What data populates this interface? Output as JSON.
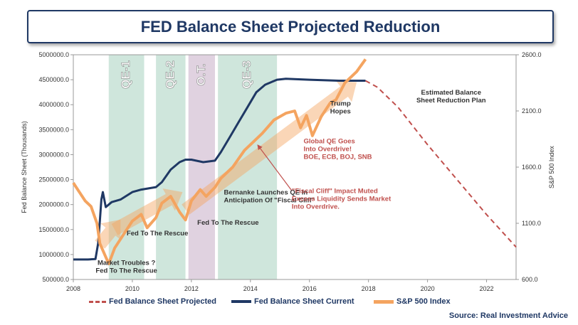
{
  "title": "FED Balance Sheet Projected Reduction",
  "source": "Source: Real Investment Advice",
  "chart_data": {
    "type": "line",
    "x_ticks": [
      "2008",
      "2010",
      "2012",
      "2014",
      "2016",
      "2018",
      "2020",
      "2022"
    ],
    "y_left_label": "Fed Balance Sheet (Thousands)",
    "y_left_ticks": [
      "5000000.0",
      "4500000.0",
      "4000000.0",
      "3500000.0",
      "3000000.0",
      "2500000.0",
      "2000000.0",
      "1500000.0",
      "1000000.0",
      "500000.0"
    ],
    "y_left_range": [
      500000,
      5000000
    ],
    "y_right_label": "S&P 500 Index",
    "y_right_ticks": [
      "2600.0",
      "2100.0",
      "1600.0",
      "1100.0",
      "600.0"
    ],
    "y_right_range": [
      600,
      2600
    ],
    "x_range": [
      2008,
      2023
    ],
    "bands": [
      {
        "label": "QE-1",
        "start": 2009.2,
        "end": 2010.4,
        "color": "#cfe6dc"
      },
      {
        "label": "QE-2",
        "start": 2010.8,
        "end": 2011.8,
        "color": "#cfe6dc"
      },
      {
        "label": "O.T.",
        "start": 2011.9,
        "end": 2012.8,
        "color": "#e0d2e0"
      },
      {
        "label": "QE-3",
        "start": 2012.9,
        "end": 2014.9,
        "color": "#cfe6dc"
      }
    ],
    "series": [
      {
        "name": "Fed Balance Sheet Current",
        "axis": "left",
        "color": "#1f3864",
        "points": [
          [
            2008.0,
            900000
          ],
          [
            2008.5,
            900000
          ],
          [
            2008.75,
            910000
          ],
          [
            2008.85,
            1250000
          ],
          [
            2008.95,
            2100000
          ],
          [
            2009.0,
            2250000
          ],
          [
            2009.1,
            1950000
          ],
          [
            2009.3,
            2050000
          ],
          [
            2009.6,
            2100000
          ],
          [
            2010.0,
            2250000
          ],
          [
            2010.3,
            2300000
          ],
          [
            2010.8,
            2350000
          ],
          [
            2011.0,
            2450000
          ],
          [
            2011.3,
            2700000
          ],
          [
            2011.6,
            2850000
          ],
          [
            2011.8,
            2900000
          ],
          [
            2012.0,
            2900000
          ],
          [
            2012.4,
            2850000
          ],
          [
            2012.8,
            2880000
          ],
          [
            2013.0,
            3050000
          ],
          [
            2013.3,
            3350000
          ],
          [
            2013.6,
            3650000
          ],
          [
            2013.9,
            3950000
          ],
          [
            2014.2,
            4250000
          ],
          [
            2014.5,
            4400000
          ],
          [
            2014.9,
            4500000
          ],
          [
            2015.2,
            4520000
          ],
          [
            2016.0,
            4500000
          ],
          [
            2017.0,
            4480000
          ],
          [
            2017.9,
            4480000
          ]
        ]
      },
      {
        "name": "S&P 500 Index",
        "axis": "right",
        "color": "#f4a460",
        "points": [
          [
            2008.0,
            1460
          ],
          [
            2008.2,
            1380
          ],
          [
            2008.4,
            1300
          ],
          [
            2008.6,
            1250
          ],
          [
            2008.8,
            1100
          ],
          [
            2008.9,
            920
          ],
          [
            2009.1,
            800
          ],
          [
            2009.2,
            740
          ],
          [
            2009.4,
            880
          ],
          [
            2009.7,
            1000
          ],
          [
            2010.0,
            1120
          ],
          [
            2010.3,
            1180
          ],
          [
            2010.5,
            1060
          ],
          [
            2010.8,
            1150
          ],
          [
            2011.0,
            1280
          ],
          [
            2011.3,
            1340
          ],
          [
            2011.6,
            1200
          ],
          [
            2011.8,
            1130
          ],
          [
            2012.0,
            1300
          ],
          [
            2012.3,
            1400
          ],
          [
            2012.5,
            1340
          ],
          [
            2012.8,
            1420
          ],
          [
            2013.0,
            1500
          ],
          [
            2013.4,
            1600
          ],
          [
            2013.8,
            1750
          ],
          [
            2014.0,
            1800
          ],
          [
            2014.4,
            1900
          ],
          [
            2014.8,
            2020
          ],
          [
            2015.2,
            2080
          ],
          [
            2015.5,
            2100
          ],
          [
            2015.7,
            1950
          ],
          [
            2015.9,
            2060
          ],
          [
            2016.1,
            1880
          ],
          [
            2016.4,
            2050
          ],
          [
            2016.7,
            2170
          ],
          [
            2016.9,
            2200
          ],
          [
            2017.2,
            2350
          ],
          [
            2017.6,
            2450
          ],
          [
            2017.9,
            2560
          ]
        ]
      },
      {
        "name": "Fed Balance Sheet Projected",
        "axis": "left",
        "color": "#c0504d",
        "dashed": true,
        "points": [
          [
            2017.9,
            4480000
          ],
          [
            2018.3,
            4350000
          ],
          [
            2019.0,
            3950000
          ],
          [
            2020.0,
            3200000
          ],
          [
            2021.0,
            2500000
          ],
          [
            2022.0,
            1800000
          ],
          [
            2023.0,
            1150000
          ]
        ]
      }
    ],
    "trend_arrows": [
      {
        "from": [
          2008.9,
          1200000
        ],
        "to": [
          2009.6,
          1700000
        ]
      },
      {
        "from": [
          2009.4,
          1500000
        ],
        "to": [
          2011.7,
          2250000
        ]
      },
      {
        "from": [
          2011.8,
          1900000
        ],
        "to": [
          2017.6,
          4450000
        ]
      }
    ],
    "annotations": [
      {
        "text": [
          "Market Troubles ?",
          "Fed To The Rescue"
        ],
        "at": [
          2009.8,
          790000
        ],
        "color": "#333333",
        "anchor": "middle"
      },
      {
        "text": [
          "Fed To The Rescue"
        ],
        "at": [
          2010.85,
          1380000
        ],
        "color": "#333333",
        "anchor": "middle"
      },
      {
        "text": [
          "Fed To The Rescue"
        ],
        "at": [
          2012.2,
          1600000
        ],
        "color": "#333333",
        "anchor": "start"
      },
      {
        "text": [
          "Bernanke Launches QE In",
          "Anticipation Of \"Fiscal Cliff\""
        ],
        "at": [
          2013.1,
          2200000
        ],
        "color": "#333333",
        "anchor": "start"
      },
      {
        "text": [
          "\"Fiscal Cliff\" Impact Muted",
          "Excess Liquidity Sends Market",
          "Into Overdrive."
        ],
        "at": [
          2015.4,
          2230000
        ],
        "color": "#c0504d",
        "anchor": "start"
      },
      {
        "text": [
          "Global QE Goes",
          "Into Overdrive!",
          "BOE, ECB, BOJ, SNB"
        ],
        "at": [
          2015.8,
          3230000
        ],
        "color": "#c0504d",
        "anchor": "start"
      },
      {
        "text": [
          "Trump",
          "Hopes"
        ],
        "at": [
          2016.7,
          3980000
        ],
        "color": "#333333",
        "anchor": "start"
      },
      {
        "text": [
          "Estimated Balance",
          "Sheet Reduction Plan"
        ],
        "at": [
          2020.8,
          4200000
        ],
        "color": "#333333",
        "anchor": "middle"
      }
    ],
    "callout_arrow": {
      "from": [
        2015.4,
        2280000
      ],
      "to": [
        2014.25,
        3190000
      ]
    }
  }
}
